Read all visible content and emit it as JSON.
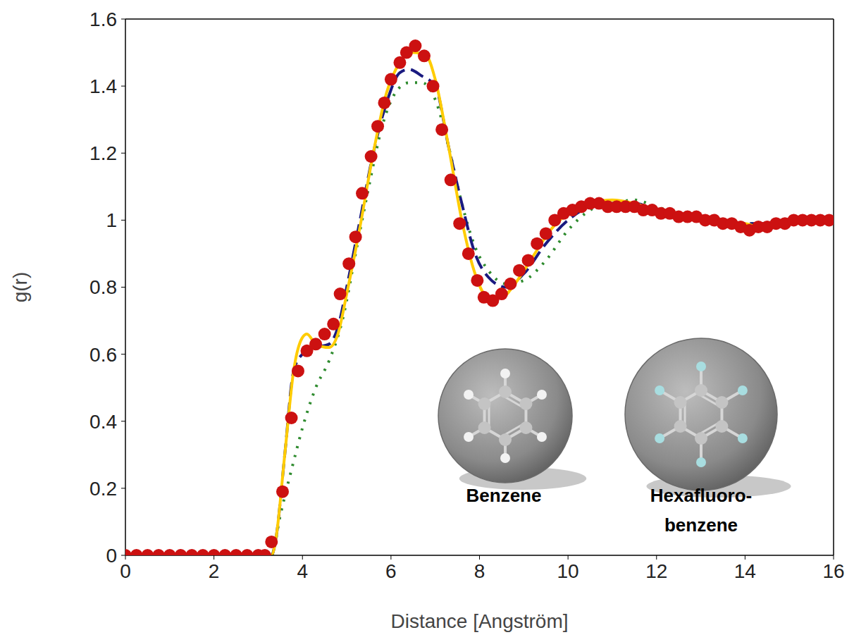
{
  "chart_data": {
    "type": "line",
    "x_label": "Distance [Angström]",
    "y_label": "g(r)",
    "xlim": [
      0,
      16
    ],
    "ylim": [
      0,
      1.6
    ],
    "xticks": [
      0,
      2,
      4,
      6,
      8,
      10,
      12,
      14,
      16
    ],
    "yticks": [
      0,
      0.2,
      0.4,
      0.6,
      0.8,
      1,
      1.2,
      1.4,
      1.6
    ],
    "grid": false,
    "annotations": [
      "Benzene",
      "Hexafluoro-benzene"
    ],
    "series": [
      {
        "type": "scatter",
        "color": "#cc1111",
        "marker": "circle",
        "x": [
          0,
          0.25,
          0.5,
          0.75,
          1.0,
          1.25,
          1.5,
          1.75,
          2.0,
          2.25,
          2.5,
          2.75,
          3.0,
          3.15,
          3.3,
          3.55,
          3.75,
          3.9,
          4.1,
          4.3,
          4.5,
          4.7,
          4.85,
          5.05,
          5.2,
          5.35,
          5.55,
          5.7,
          5.85,
          6.0,
          6.2,
          6.35,
          6.55,
          6.75,
          6.95,
          7.15,
          7.35,
          7.55,
          7.75,
          7.95,
          8.1,
          8.3,
          8.5,
          8.7,
          8.9,
          9.1,
          9.3,
          9.5,
          9.7,
          9.9,
          10.1,
          10.3,
          10.5,
          10.7,
          10.9,
          11.1,
          11.3,
          11.5,
          11.7,
          11.9,
          12.1,
          12.3,
          12.5,
          12.7,
          12.9,
          13.1,
          13.3,
          13.5,
          13.7,
          13.9,
          14.1,
          14.3,
          14.5,
          14.7,
          14.9,
          15.1,
          15.3,
          15.5,
          15.7,
          15.9
        ],
        "values": [
          0,
          0,
          0,
          0,
          0,
          0,
          0,
          0,
          0,
          0,
          0,
          0,
          0,
          0,
          0.04,
          0.19,
          0.41,
          0.55,
          0.61,
          0.63,
          0.66,
          0.69,
          0.78,
          0.87,
          0.95,
          1.08,
          1.19,
          1.28,
          1.35,
          1.42,
          1.47,
          1.5,
          1.52,
          1.49,
          1.4,
          1.27,
          1.12,
          0.99,
          0.9,
          0.82,
          0.77,
          0.76,
          0.78,
          0.81,
          0.85,
          0.88,
          0.93,
          0.96,
          1.0,
          1.02,
          1.03,
          1.04,
          1.05,
          1.05,
          1.04,
          1.04,
          1.04,
          1.04,
          1.03,
          1.03,
          1.02,
          1.02,
          1.01,
          1.01,
          1.01,
          1.0,
          1.0,
          0.99,
          0.99,
          0.98,
          0.97,
          0.98,
          0.98,
          0.99,
          0.99,
          1.0,
          1.0,
          1.0,
          1.0,
          1.0
        ]
      },
      {
        "type": "line",
        "color": "#2e8b2e",
        "line_style": "dotted",
        "x": [
          0,
          3.3,
          3.5,
          3.8,
          4.0,
          4.3,
          4.6,
          4.9,
          5.2,
          5.5,
          5.8,
          6.1,
          6.4,
          6.7,
          7.0,
          7.3,
          7.6,
          7.9,
          8.2,
          8.6,
          9.0,
          9.5,
          10.0,
          10.5,
          11.0,
          11.5,
          12.0,
          12.5,
          13.0,
          13.5,
          14.0,
          14.5,
          15.0,
          15.5,
          16.0
        ],
        "values": [
          0,
          0,
          0.12,
          0.28,
          0.38,
          0.5,
          0.58,
          0.7,
          0.9,
          1.1,
          1.28,
          1.38,
          1.41,
          1.41,
          1.36,
          1.22,
          1.05,
          0.92,
          0.85,
          0.81,
          0.82,
          0.88,
          0.97,
          1.03,
          1.05,
          1.06,
          1.04,
          1.02,
          1.01,
          1.0,
          0.99,
          0.99,
          1.0,
          1.0,
          1.0
        ]
      },
      {
        "type": "line",
        "color": "#1a1a80",
        "line_style": "dashed",
        "x": [
          0,
          3.3,
          3.4,
          3.6,
          3.8,
          4.0,
          4.3,
          4.6,
          4.8,
          5.0,
          5.3,
          5.6,
          5.9,
          6.2,
          6.4,
          6.7,
          7.0,
          7.3,
          7.6,
          7.9,
          8.2,
          8.6,
          9.0,
          9.5,
          10.0,
          10.5,
          11.0,
          11.5,
          12.0,
          12.5,
          13.0,
          13.5,
          14.0,
          14.5,
          15.0,
          15.5,
          16.0
        ],
        "values": [
          0,
          0,
          0.05,
          0.3,
          0.55,
          0.6,
          0.62,
          0.63,
          0.68,
          0.8,
          1.0,
          1.2,
          1.35,
          1.44,
          1.45,
          1.43,
          1.4,
          1.22,
          1.05,
          0.9,
          0.83,
          0.8,
          0.84,
          0.93,
          1.0,
          1.04,
          1.05,
          1.05,
          1.03,
          1.01,
          1.0,
          0.99,
          0.99,
          0.99,
          0.99,
          1.0,
          1.0
        ]
      },
      {
        "type": "line",
        "color": "#ffcc00",
        "line_style": "solid",
        "x": [
          0,
          3.3,
          3.4,
          3.6,
          3.8,
          4.0,
          4.1,
          4.3,
          4.6,
          4.8,
          5.0,
          5.3,
          5.6,
          5.9,
          6.2,
          6.5,
          6.8,
          7.0,
          7.3,
          7.6,
          7.9,
          8.2,
          8.5,
          8.8,
          9.2,
          9.6,
          10.0,
          10.5,
          11.0,
          11.5,
          12.0,
          12.5,
          13.0,
          13.5,
          14.0,
          14.3,
          14.6,
          15.0,
          15.5,
          16.0
        ],
        "values": [
          0,
          0,
          0.05,
          0.3,
          0.55,
          0.65,
          0.66,
          0.63,
          0.62,
          0.66,
          0.78,
          0.98,
          1.2,
          1.38,
          1.47,
          1.5,
          1.49,
          1.42,
          1.22,
          1.0,
          0.84,
          0.77,
          0.77,
          0.81,
          0.89,
          0.97,
          1.02,
          1.05,
          1.06,
          1.05,
          1.03,
          1.01,
          1.0,
          0.99,
          0.99,
          0.98,
          0.99,
          0.99,
          1.0,
          1.01
        ]
      }
    ]
  }
}
